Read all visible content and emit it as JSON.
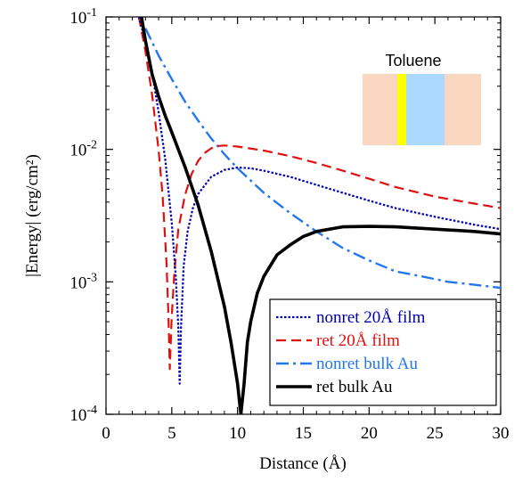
{
  "chart_data": {
    "type": "line",
    "title": "",
    "xlabel": "Distance (Å)",
    "ylabel": "|Energy| (erg/cm²)",
    "xlim": [
      0,
      30
    ],
    "ylim": [
      0.0001,
      0.1
    ],
    "yscale": "log",
    "x_ticks": [
      "0",
      "5",
      "10",
      "15",
      "20",
      "25",
      "30"
    ],
    "y_ticks": [
      {
        "base": "10",
        "exp": "-4"
      },
      {
        "base": "10",
        "exp": "-3"
      },
      {
        "base": "10",
        "exp": "-2"
      },
      {
        "base": "10",
        "exp": "-1"
      }
    ],
    "legend_position": "bottom-right",
    "inset": {
      "title": "Toluene",
      "layers": [
        {
          "name": "left-slab",
          "color": "#f9d6c0"
        },
        {
          "name": "film",
          "color": "#ffff00"
        },
        {
          "name": "toluene",
          "color": "#aad8ff"
        },
        {
          "name": "right-slab",
          "color": "#f9d6c0"
        }
      ]
    },
    "series": [
      {
        "name": "nonret 20Å film",
        "color": "#0000b0",
        "style": "dotted",
        "x": [
          2.5,
          3.0,
          3.5,
          4.0,
          4.5,
          5.0,
          5.3,
          5.5,
          5.6,
          5.7,
          5.9,
          6.2,
          6.6,
          7.0,
          8.0,
          9.0,
          10.0,
          11.0,
          12.0,
          14.0,
          16.0,
          18.0,
          20.0,
          22.0,
          25.0,
          28.0,
          30.0
        ],
        "y": [
          0.1,
          0.065,
          0.038,
          0.019,
          0.0085,
          0.0028,
          0.0011,
          0.00045,
          0.00017,
          0.00045,
          0.0013,
          0.0024,
          0.0036,
          0.0046,
          0.0062,
          0.007,
          0.0073,
          0.0072,
          0.0069,
          0.0062,
          0.0054,
          0.0047,
          0.0041,
          0.0036,
          0.0031,
          0.0027,
          0.0025
        ]
      },
      {
        "name": "ret 20Å film",
        "color": "#e01010",
        "style": "dashed",
        "x": [
          2.5,
          3.0,
          3.5,
          4.0,
          4.3,
          4.6,
          4.75,
          4.85,
          5.0,
          5.2,
          5.5,
          6.0,
          6.5,
          7.0,
          7.5,
          8.0,
          8.5,
          9.0,
          10.0,
          12.0,
          14.0,
          16.0,
          18.0,
          20.0,
          22.0,
          25.0,
          28.0,
          30.0
        ],
        "y": [
          0.1,
          0.055,
          0.026,
          0.0098,
          0.0045,
          0.0014,
          0.00055,
          0.00022,
          0.00055,
          0.0012,
          0.0025,
          0.0045,
          0.0065,
          0.0082,
          0.0094,
          0.0102,
          0.0106,
          0.0107,
          0.0105,
          0.0098,
          0.0089,
          0.0079,
          0.0069,
          0.006,
          0.0052,
          0.0044,
          0.0039,
          0.0036
        ]
      },
      {
        "name": "nonret bulk Au",
        "color": "#2277ee",
        "style": "dashdot",
        "x": [
          3.0,
          4.0,
          5.0,
          6.0,
          7.0,
          8.0,
          9.0,
          10.0,
          12.0,
          14.0,
          16.0,
          18.0,
          20.0,
          22.0,
          24.0,
          26.0,
          28.0,
          30.0
        ],
        "y": [
          0.082,
          0.051,
          0.034,
          0.023,
          0.0165,
          0.0121,
          0.0092,
          0.0072,
          0.0047,
          0.0033,
          0.0024,
          0.0018,
          0.00145,
          0.0012,
          0.0011,
          0.001,
          0.00095,
          0.0009
        ]
      },
      {
        "name": "ret bulk Au",
        "color": "#000000",
        "style": "solid",
        "x": [
          2.7,
          3.0,
          3.5,
          4.0,
          4.5,
          5.0,
          6.0,
          7.0,
          8.0,
          9.0,
          9.5,
          10.0,
          10.25,
          10.5,
          10.75,
          11.0,
          11.5,
          12.0,
          13.0,
          14.0,
          15.0,
          16.0,
          18.0,
          20.0,
          22.0,
          25.0,
          28.0,
          30.0
        ],
        "y": [
          0.1,
          0.066,
          0.037,
          0.025,
          0.018,
          0.0135,
          0.0074,
          0.0038,
          0.0017,
          0.00065,
          0.00035,
          0.00017,
          0.0001,
          0.00017,
          0.00035,
          0.0005,
          0.00082,
          0.0011,
          0.0016,
          0.0019,
          0.0022,
          0.0024,
          0.0026,
          0.00262,
          0.0026,
          0.0025,
          0.0024,
          0.0023
        ]
      }
    ]
  }
}
